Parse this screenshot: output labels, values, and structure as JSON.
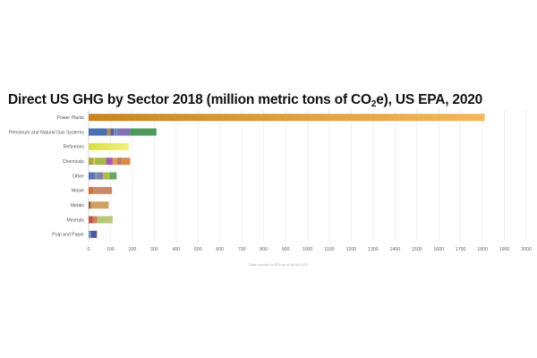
{
  "title": {
    "main": "Direct US GHG by Sector 2018  (million metric tons of CO",
    "sub": "2",
    "tail": "e), US EPA, 2020"
  },
  "footnote": "Data reported to EPA as of 08-04-2019",
  "chart_data": {
    "type": "bar",
    "orientation": "horizontal",
    "stacked": true,
    "title": "Direct US GHG by Sector 2018  (million metric tons of CO2e), US EPA, 2020",
    "categories": [
      "Power Plants",
      "Petroleum and Natural Gas Systems",
      "Refineries",
      "Chemicals",
      "Other",
      "Waste",
      "Metals",
      "Minerals",
      "Pulp and Paper"
    ],
    "totals": [
      1810,
      310,
      183,
      190,
      128,
      107,
      92,
      110,
      38
    ],
    "segments": [
      [
        {
          "value": 1810,
          "color": "#c9861e",
          "color2": "#f4b85a"
        }
      ],
      [
        {
          "value": 85,
          "color": "#4a6fb0"
        },
        {
          "value": 15,
          "color": "#a88a5c"
        },
        {
          "value": 15,
          "color": "#6c5a9a"
        },
        {
          "value": 15,
          "color": "#5a8fc0"
        },
        {
          "value": 60,
          "color": "#8272b4"
        },
        {
          "value": 120,
          "color": "#4e9a5c"
        }
      ],
      [
        {
          "value": 183,
          "color": "#d8df48",
          "color2": "#eef07a"
        }
      ],
      [
        {
          "value": 20,
          "color": "#b0a048"
        },
        {
          "value": 10,
          "color": "#d2c45a"
        },
        {
          "value": 50,
          "color": "#a8b848"
        },
        {
          "value": 30,
          "color": "#a85ab0"
        },
        {
          "value": 20,
          "color": "#e0a050"
        },
        {
          "value": 20,
          "color": "#c07a70"
        },
        {
          "value": 40,
          "color": "#d88a48"
        }
      ],
      [
        {
          "value": 30,
          "color": "#5a78b8"
        },
        {
          "value": 15,
          "color": "#7a9ab0"
        },
        {
          "value": 20,
          "color": "#8a78b0"
        },
        {
          "value": 30,
          "color": "#a8c048"
        },
        {
          "value": 33,
          "color": "#6aa860"
        }
      ],
      [
        {
          "value": 20,
          "color": "#c87040"
        },
        {
          "value": 87,
          "color": "#c88a68"
        }
      ],
      [
        {
          "value": 10,
          "color": "#8a6a40"
        },
        {
          "value": 82,
          "color": "#d0a060"
        }
      ],
      [
        {
          "value": 20,
          "color": "#b85848"
        },
        {
          "value": 20,
          "color": "#d08060"
        },
        {
          "value": 70,
          "color": "#b8c878"
        }
      ],
      [
        {
          "value": 10,
          "color": "#7a9ab8"
        },
        {
          "value": 28,
          "color": "#4a58a0"
        }
      ]
    ],
    "xlim": [
      0,
      2000
    ],
    "xticks": [
      0,
      100,
      200,
      300,
      400,
      500,
      600,
      700,
      800,
      900,
      1000,
      1100,
      1200,
      1300,
      1400,
      1500,
      1600,
      1700,
      1800,
      1900,
      2000
    ],
    "grid": true,
    "legend": "none"
  }
}
